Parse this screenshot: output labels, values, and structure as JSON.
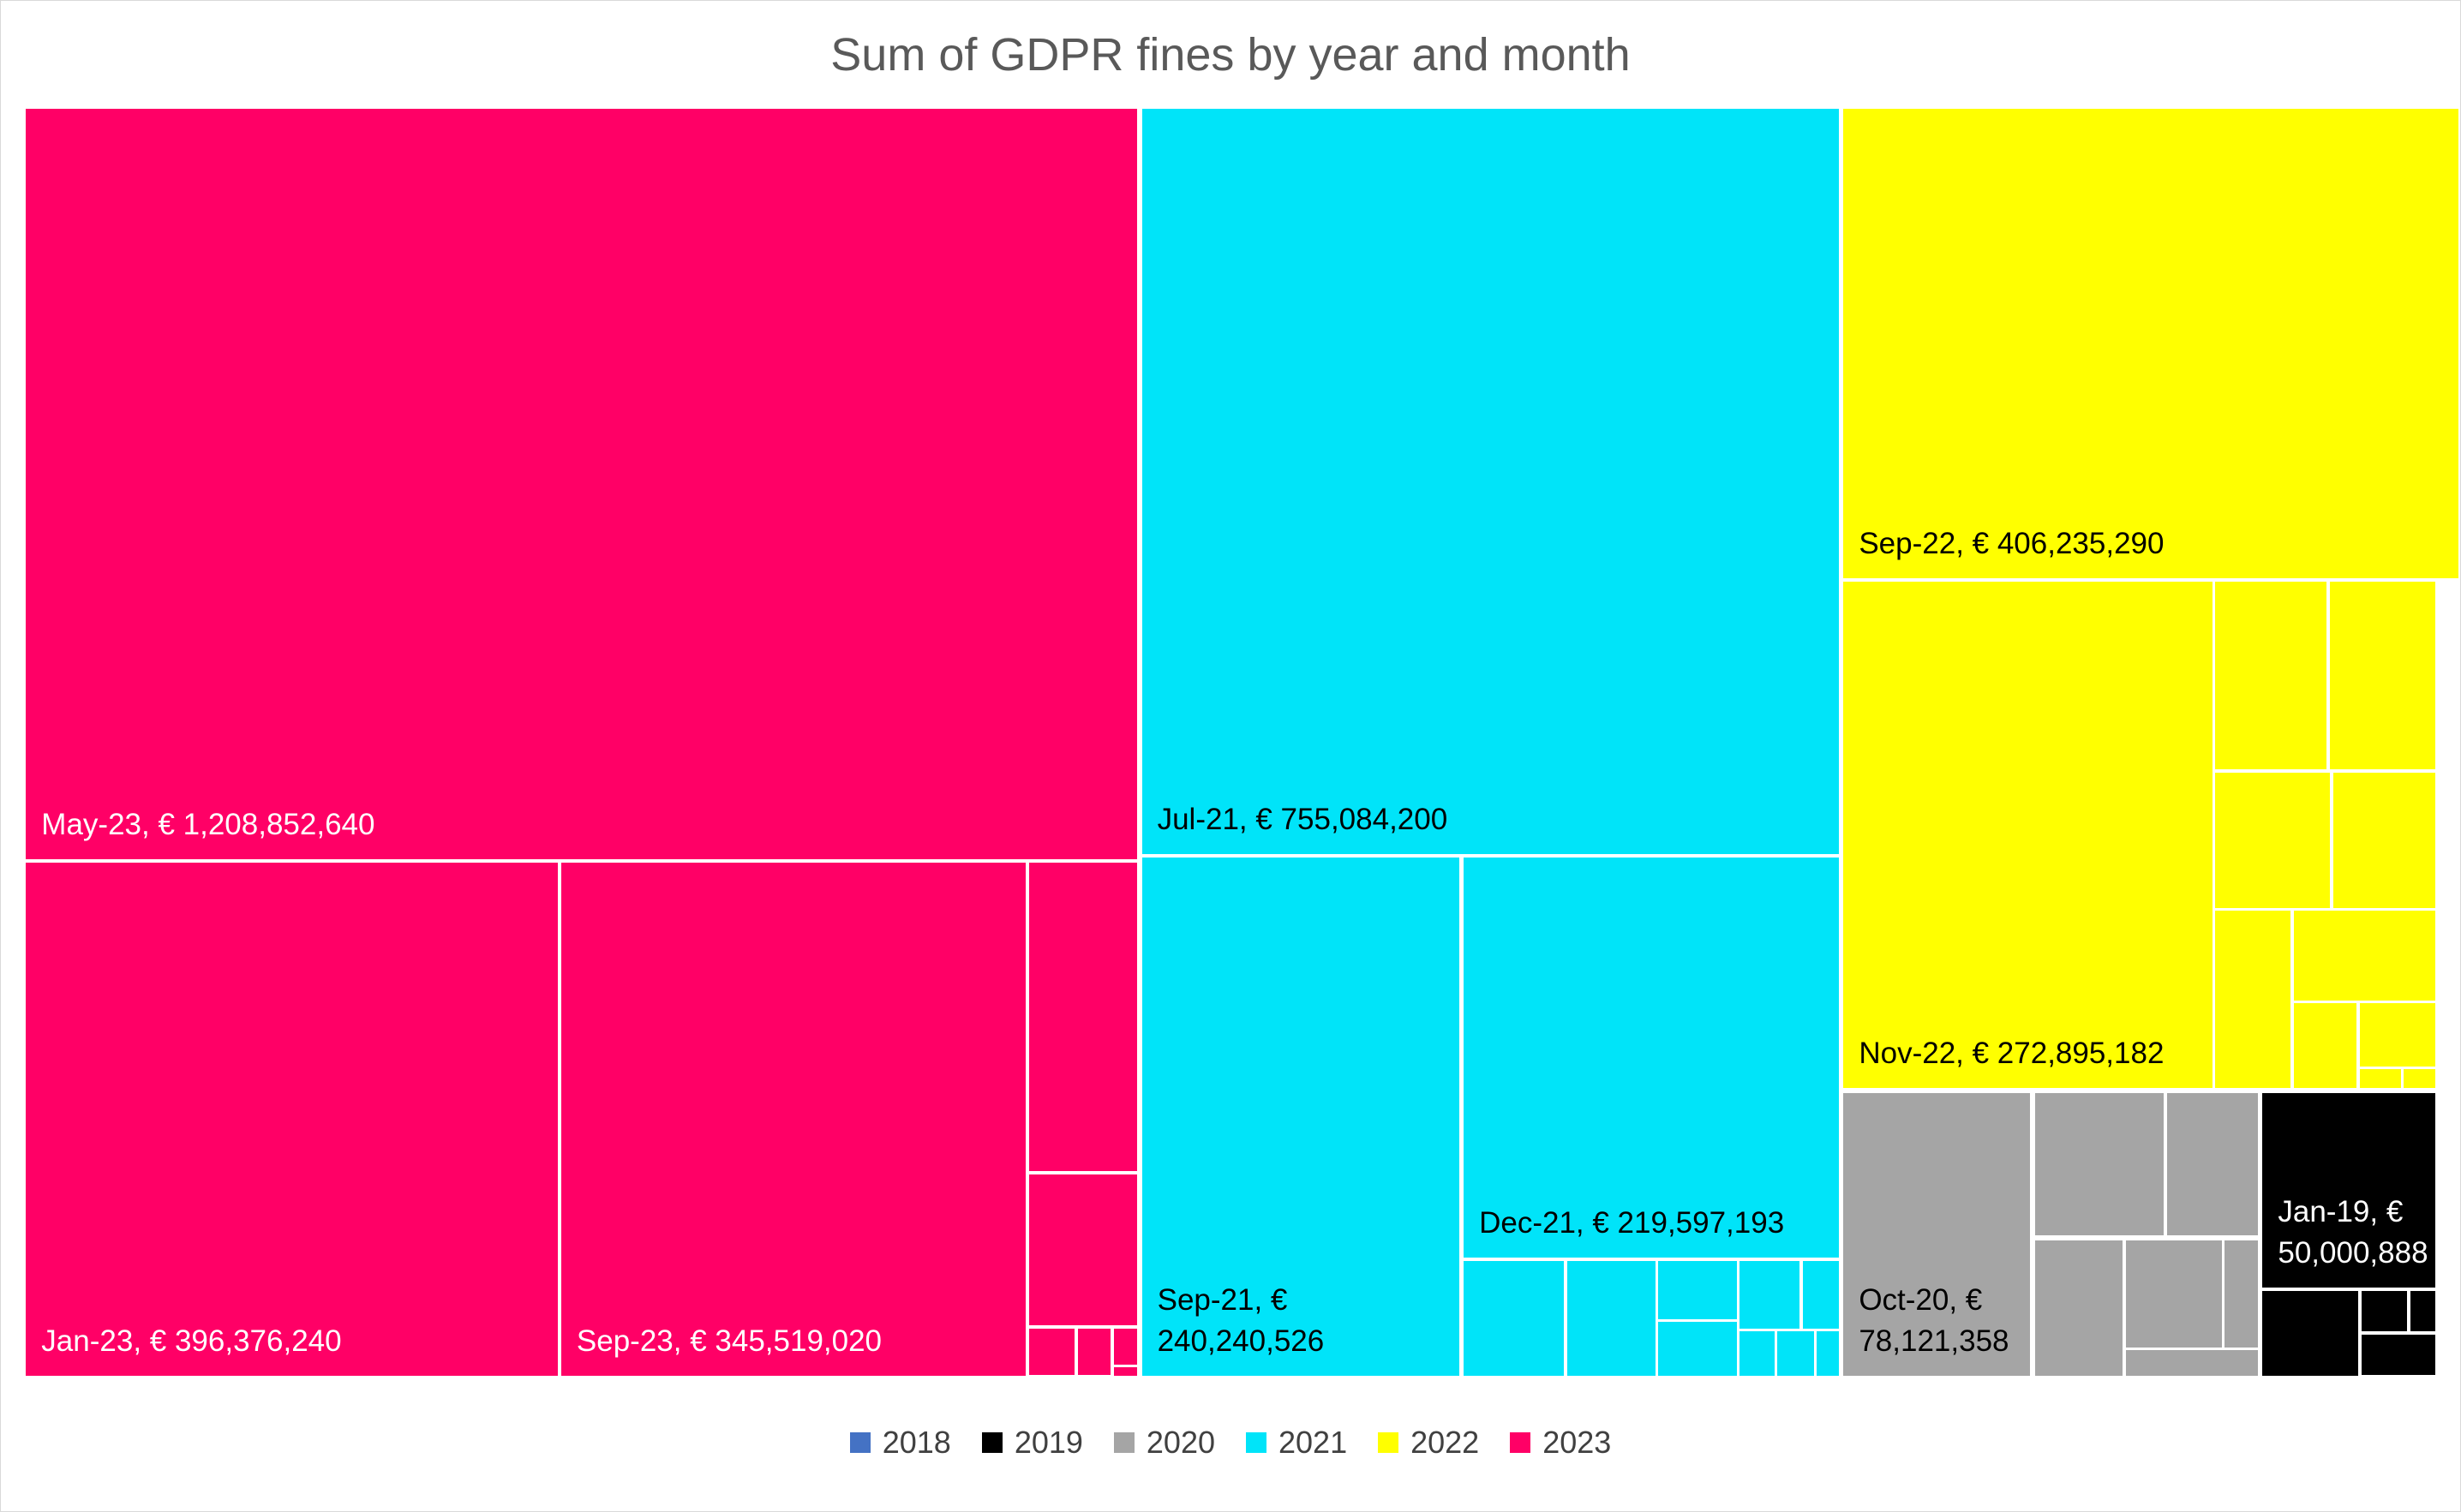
{
  "chart_data": {
    "type": "treemap",
    "title": "Sum of GDPR fines by year and month",
    "legend": "bottom",
    "series": [
      {
        "name": "2018",
        "color": "#4472c4",
        "values": [],
        "value_labels": []
      },
      {
        "name": "2019",
        "color": "#000000",
        "values": [
          50000888,
          11800000,
          2700000,
          1500000,
          4400000
        ],
        "value_labels": [
          "Jan-19, € 50,000,888",
          null,
          null,
          null,
          null
        ]
      },
      {
        "name": "2020",
        "color": "#a5a5a5",
        "values": [
          78121358,
          26700000,
          18900000,
          17200000,
          14800000,
          5100000,
          4800000
        ],
        "value_labels": [
          "Oct-20, € 78,121,358",
          null,
          null,
          null,
          null,
          null,
          null
        ]
      },
      {
        "name": "2021",
        "color": "#00e4f9",
        "values": [
          755084200,
          240240526,
          219597193,
          16700000,
          14600000,
          6600000,
          6100000,
          5800000,
          3500000,
          2200000,
          2300000,
          1400000
        ],
        "value_labels": [
          "Jul-21, € 755,084,200",
          "Sep-21, € 240,240,526",
          "Dec-21, € 219,597,193",
          null,
          null,
          null,
          null,
          null,
          null,
          null,
          null,
          null
        ]
      },
      {
        "name": "2022",
        "color": "#ffff00",
        "values": [
          406235290,
          272895182,
          30400000,
          28700000,
          22400000,
          20000000,
          19400000,
          18300000,
          7700000,
          6900000,
          1100000,
          900000
        ],
        "value_labels": [
          "Sep-22, € 406,235,290",
          "Nov-22, € 272,895,182",
          null,
          null,
          null,
          null,
          null,
          null,
          null,
          null,
          null,
          null
        ]
      },
      {
        "name": "2023",
        "color": "#ff0066",
        "values": [
          1208852640,
          396376240,
          345519020,
          48600000,
          23700000,
          3100000,
          2300000,
          1200000,
          270000
        ],
        "value_labels": [
          "May-23, € 1,208,852,640",
          "Jan-23, € 396,376,240",
          "Sep-23, € 345,519,020",
          null,
          null,
          null,
          null,
          null,
          null
        ]
      }
    ]
  }
}
